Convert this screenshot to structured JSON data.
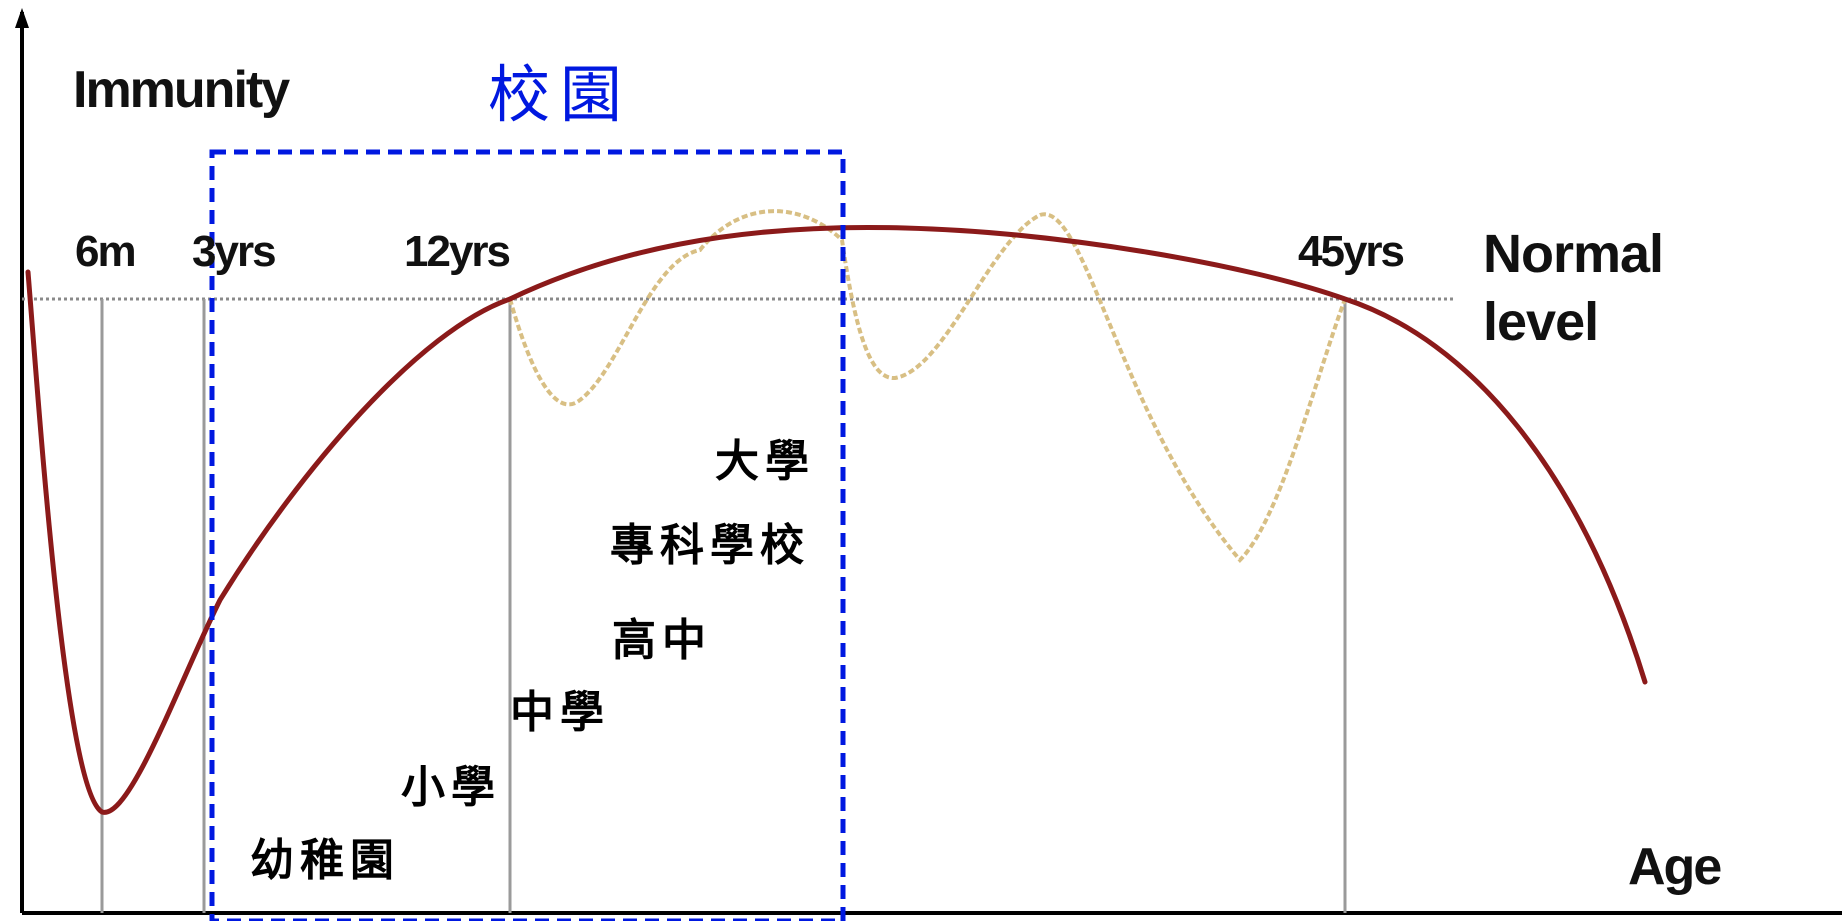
{
  "y_axis_label": "Immunity",
  "x_axis_label": "Age",
  "normal_level_label": [
    "Normal",
    "level"
  ],
  "campus_label": "校園",
  "age_markers": [
    "6m",
    "3yrs",
    "12yrs",
    "45yrs"
  ],
  "school_stages": [
    "幼稚園",
    "小學",
    "中學",
    "高中",
    "專科學校",
    "大學"
  ],
  "colors": {
    "immunity_curve": "#8b1a1a",
    "fluctuation_curve": "#d8bf84",
    "campus_box": "#0018e0",
    "normal_line": "#8a8a8a",
    "marker_lines": "#9a9a9a",
    "axes": "#000000"
  }
}
